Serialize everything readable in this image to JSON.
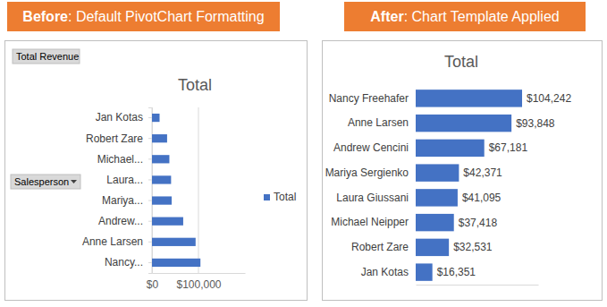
{
  "panel_labels": [
    {
      "bold": "Before",
      "text": ": Default PivotChart Formatting"
    },
    {
      "bold": "After",
      "text": ": Chart Template Applied"
    }
  ],
  "chart_data": [
    {
      "type": "bar",
      "orientation": "horizontal",
      "title": "Total",
      "annotations": [
        "Total Revenue",
        "Salesperson"
      ],
      "categories": [
        "Jan Kotas",
        "Robert Zare",
        "Michael...",
        "Laura...",
        "Mariya...",
        "Andrew...",
        "Anne Larsen",
        "Nancy..."
      ],
      "series": [
        {
          "name": "Total",
          "color": "#4472c4",
          "values": [
            16351,
            32531,
            37418,
            41095,
            42371,
            67181,
            93848,
            104242
          ]
        }
      ],
      "xlim": [
        0,
        200000
      ],
      "xticks": [
        {
          "value": 0,
          "label": "$0"
        },
        {
          "value": 100000,
          "label": "$100,000"
        }
      ],
      "grid": true,
      "legend": "right"
    },
    {
      "type": "bar",
      "orientation": "horizontal",
      "title": "Total",
      "categories": [
        "Nancy Freehafer",
        "Anne Larsen",
        "Andrew Cencini",
        "Mariya Sergienko",
        "Laura Giussani",
        "Michael Neipper",
        "Robert Zare",
        "Jan Kotas"
      ],
      "values": [
        104242,
        93848,
        67181,
        42371,
        41095,
        37418,
        32531,
        16351
      ],
      "value_labels": [
        "$104,242",
        "$93,848",
        "$67,181",
        "$42,371",
        "$41,095",
        "$37,418",
        "$32,531",
        "$16,351"
      ],
      "color": "#4472c4",
      "xlim": [
        0,
        120000
      ],
      "data_labels": true,
      "tick_labels": "y",
      "grid": false
    }
  ]
}
